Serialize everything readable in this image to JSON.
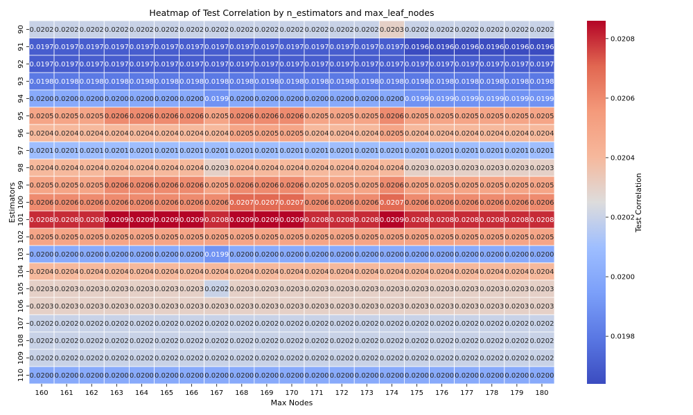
{
  "chart_data": {
    "type": "heatmap",
    "title": "Heatmap of Test Correlation by n_estimators and max_leaf_nodes",
    "xlabel": "Max Nodes",
    "ylabel": "Estimators",
    "x_categories": [
      "160",
      "161",
      "162",
      "163",
      "164",
      "165",
      "166",
      "167",
      "168",
      "169",
      "170",
      "171",
      "172",
      "173",
      "174",
      "175",
      "176",
      "177",
      "178",
      "179",
      "180"
    ],
    "y_categories": [
      "90",
      "91",
      "92",
      "93",
      "94",
      "95",
      "96",
      "97",
      "98",
      "99",
      "100",
      "101",
      "102",
      "103",
      "104",
      "105",
      "106",
      "107",
      "108",
      "109",
      "110"
    ],
    "values": [
      [
        0.0202,
        0.0202,
        0.0202,
        0.0202,
        0.0202,
        0.0202,
        0.0202,
        0.0202,
        0.0202,
        0.0202,
        0.0202,
        0.0202,
        0.0202,
        0.0202,
        0.0203,
        0.0202,
        0.0202,
        0.0202,
        0.0202,
        0.0202,
        0.0202
      ],
      [
        0.0197,
        0.0197,
        0.0197,
        0.0197,
        0.0197,
        0.0197,
        0.0197,
        0.0197,
        0.0197,
        0.0197,
        0.0197,
        0.0197,
        0.0197,
        0.0197,
        0.0197,
        0.0196,
        0.0196,
        0.0196,
        0.0196,
        0.0196,
        0.0196
      ],
      [
        0.0197,
        0.0197,
        0.0197,
        0.0197,
        0.0197,
        0.0197,
        0.0197,
        0.0197,
        0.0197,
        0.0197,
        0.0197,
        0.0197,
        0.0197,
        0.0197,
        0.0197,
        0.0197,
        0.0197,
        0.0197,
        0.0197,
        0.0197,
        0.0197
      ],
      [
        0.0198,
        0.0198,
        0.0198,
        0.0198,
        0.0198,
        0.0198,
        0.0198,
        0.0198,
        0.0198,
        0.0198,
        0.0198,
        0.0198,
        0.0198,
        0.0198,
        0.0198,
        0.0198,
        0.0198,
        0.0198,
        0.0198,
        0.0198,
        0.0198
      ],
      [
        0.02,
        0.02,
        0.02,
        0.02,
        0.02,
        0.02,
        0.02,
        0.0199,
        0.02,
        0.02,
        0.02,
        0.02,
        0.02,
        0.02,
        0.02,
        0.0199,
        0.0199,
        0.0199,
        0.0199,
        0.0199,
        0.0199
      ],
      [
        0.0205,
        0.0205,
        0.0205,
        0.0206,
        0.0206,
        0.0206,
        0.0206,
        0.0205,
        0.0206,
        0.0206,
        0.0206,
        0.0205,
        0.0205,
        0.0205,
        0.0206,
        0.0205,
        0.0205,
        0.0205,
        0.0205,
        0.0205,
        0.0205
      ],
      [
        0.0204,
        0.0204,
        0.0204,
        0.0204,
        0.0204,
        0.0204,
        0.0204,
        0.0204,
        0.0205,
        0.0205,
        0.0205,
        0.0204,
        0.0204,
        0.0204,
        0.0205,
        0.0204,
        0.0204,
        0.0204,
        0.0204,
        0.0204,
        0.0204
      ],
      [
        0.0201,
        0.0201,
        0.0201,
        0.0201,
        0.0201,
        0.0201,
        0.0201,
        0.0201,
        0.0201,
        0.0201,
        0.0201,
        0.0201,
        0.0201,
        0.0201,
        0.0201,
        0.0201,
        0.0201,
        0.0201,
        0.0201,
        0.0201,
        0.0201
      ],
      [
        0.0204,
        0.0204,
        0.0204,
        0.0204,
        0.0204,
        0.0204,
        0.0204,
        0.0203,
        0.0204,
        0.0204,
        0.0204,
        0.0204,
        0.0204,
        0.0204,
        0.0204,
        0.0203,
        0.0203,
        0.0203,
        0.0203,
        0.0203,
        0.0203
      ],
      [
        0.0205,
        0.0205,
        0.0205,
        0.0206,
        0.0206,
        0.0206,
        0.0206,
        0.0205,
        0.0206,
        0.0206,
        0.0206,
        0.0205,
        0.0205,
        0.0205,
        0.0206,
        0.0205,
        0.0205,
        0.0205,
        0.0205,
        0.0205,
        0.0205
      ],
      [
        0.0206,
        0.0206,
        0.0206,
        0.0206,
        0.0206,
        0.0206,
        0.0206,
        0.0206,
        0.0207,
        0.0207,
        0.0207,
        0.0206,
        0.0206,
        0.0206,
        0.0207,
        0.0206,
        0.0206,
        0.0206,
        0.0206,
        0.0206,
        0.0206
      ],
      [
        0.0208,
        0.0208,
        0.0208,
        0.0209,
        0.0209,
        0.0209,
        0.0209,
        0.0208,
        0.0209,
        0.0209,
        0.0209,
        0.0208,
        0.0208,
        0.0208,
        0.0209,
        0.0208,
        0.0208,
        0.0208,
        0.0208,
        0.0208,
        0.0208
      ],
      [
        0.0205,
        0.0205,
        0.0205,
        0.0205,
        0.0205,
        0.0205,
        0.0205,
        0.0205,
        0.0205,
        0.0205,
        0.0205,
        0.0205,
        0.0205,
        0.0205,
        0.0205,
        0.0205,
        0.0205,
        0.0205,
        0.0205,
        0.0205,
        0.0205
      ],
      [
        0.02,
        0.02,
        0.02,
        0.02,
        0.02,
        0.02,
        0.02,
        0.0199,
        0.02,
        0.02,
        0.02,
        0.02,
        0.02,
        0.02,
        0.02,
        0.02,
        0.02,
        0.02,
        0.02,
        0.02,
        0.02
      ],
      [
        0.0204,
        0.0204,
        0.0204,
        0.0204,
        0.0204,
        0.0204,
        0.0204,
        0.0204,
        0.0204,
        0.0204,
        0.0204,
        0.0204,
        0.0204,
        0.0204,
        0.0204,
        0.0204,
        0.0204,
        0.0204,
        0.0204,
        0.0204,
        0.0204
      ],
      [
        0.0203,
        0.0203,
        0.0203,
        0.0203,
        0.0203,
        0.0203,
        0.0203,
        0.0202,
        0.0203,
        0.0203,
        0.0203,
        0.0203,
        0.0203,
        0.0203,
        0.0203,
        0.0203,
        0.0203,
        0.0203,
        0.0203,
        0.0203,
        0.0203
      ],
      [
        0.0203,
        0.0203,
        0.0203,
        0.0203,
        0.0203,
        0.0203,
        0.0203,
        0.0203,
        0.0203,
        0.0203,
        0.0203,
        0.0203,
        0.0203,
        0.0203,
        0.0203,
        0.0203,
        0.0203,
        0.0203,
        0.0203,
        0.0203,
        0.0203
      ],
      [
        0.0202,
        0.0202,
        0.0202,
        0.0202,
        0.0202,
        0.0202,
        0.0202,
        0.0202,
        0.0202,
        0.0202,
        0.0202,
        0.0202,
        0.0202,
        0.0202,
        0.0202,
        0.0202,
        0.0202,
        0.0202,
        0.0202,
        0.0202,
        0.0202
      ],
      [
        0.0202,
        0.0202,
        0.0202,
        0.0202,
        0.0202,
        0.0202,
        0.0202,
        0.0202,
        0.0202,
        0.0202,
        0.0202,
        0.0202,
        0.0202,
        0.0202,
        0.0202,
        0.0202,
        0.0202,
        0.0202,
        0.0202,
        0.0202,
        0.0202
      ],
      [
        0.0202,
        0.0202,
        0.0202,
        0.0202,
        0.0202,
        0.0202,
        0.0202,
        0.0202,
        0.0202,
        0.0202,
        0.0202,
        0.0202,
        0.0202,
        0.0202,
        0.0202,
        0.0202,
        0.0202,
        0.0202,
        0.0202,
        0.0202,
        0.0202
      ],
      [
        0.02,
        0.02,
        0.02,
        0.02,
        0.02,
        0.02,
        0.02,
        0.02,
        0.02,
        0.02,
        0.02,
        0.02,
        0.02,
        0.02,
        0.02,
        0.02,
        0.02,
        0.02,
        0.02,
        0.02,
        0.02
      ]
    ],
    "color_range": [
      0.01964,
      0.02086
    ],
    "colormap": "coolwarm",
    "colorbar": {
      "label": "Test Correlation",
      "ticks": [
        0.0198,
        0.02,
        0.0202,
        0.0204,
        0.0206,
        0.0208
      ],
      "tick_labels": [
        "0.0198",
        "0.0200",
        "0.0202",
        "0.0204",
        "0.0206",
        "0.0208"
      ]
    }
  }
}
